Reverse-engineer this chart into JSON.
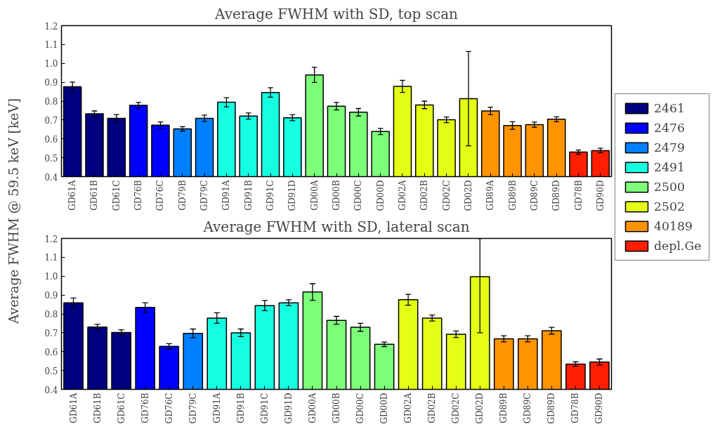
{
  "chart_data": [
    {
      "type": "bar",
      "title": "Average FWHM with SD, top scan",
      "ylabel": "Average FWHM @ 59.5 keV [keV]",
      "legend": "right",
      "grid": false,
      "categories": [
        "GD61A",
        "GD61B",
        "GD61C",
        "GD76B",
        "GD76C",
        "GD79B",
        "GD79C",
        "GD91A",
        "GD91B",
        "GD91C",
        "GD91D",
        "GD00A",
        "GD00B",
        "GD00C",
        "GD00D",
        "GD02A",
        "GD02B",
        "GD02C",
        "GD02D",
        "GD89A",
        "GD89B",
        "GD89C",
        "GD89D",
        "GD78B",
        "GD90D"
      ],
      "ylim": [
        0.4,
        1.2
      ],
      "yticks": [
        0.4,
        0.5,
        0.6,
        0.7,
        0.8,
        0.9,
        {
          "value": 1,
          "label": "1.0"
        },
        1.1,
        1.2
      ],
      "series": [
        {
          "name": "2461",
          "color": "#000080",
          "values": [
            0.876,
            0.733,
            0.709,
            null,
            null,
            null,
            null,
            null,
            null,
            null,
            null,
            null,
            null,
            null,
            null,
            null,
            null,
            null,
            null,
            null,
            null,
            null,
            null,
            null,
            null
          ],
          "errors": [
            0.025,
            0.015,
            0.02,
            null,
            null,
            null,
            null,
            null,
            null,
            null,
            null,
            null,
            null,
            null,
            null,
            null,
            null,
            null,
            null,
            null,
            null,
            null,
            null,
            null,
            null
          ]
        },
        {
          "name": "2476",
          "color": "#0000ff",
          "values": [
            null,
            null,
            null,
            0.778,
            0.673,
            null,
            null,
            null,
            null,
            null,
            null,
            null,
            null,
            null,
            null,
            null,
            null,
            null,
            null,
            null,
            null,
            null,
            null,
            null,
            null
          ],
          "errors": [
            null,
            null,
            null,
            0.015,
            0.017,
            null,
            null,
            null,
            null,
            null,
            null,
            null,
            null,
            null,
            null,
            null,
            null,
            null,
            null,
            null,
            null,
            null,
            null,
            null,
            null
          ]
        },
        {
          "name": "2479",
          "color": "#0080ff",
          "values": [
            null,
            null,
            null,
            null,
            null,
            0.653,
            0.709,
            null,
            null,
            null,
            null,
            null,
            null,
            null,
            null,
            null,
            null,
            null,
            null,
            null,
            null,
            null,
            null,
            null,
            null
          ],
          "errors": [
            null,
            null,
            null,
            null,
            null,
            0.012,
            0.017,
            null,
            null,
            null,
            null,
            null,
            null,
            null,
            null,
            null,
            null,
            null,
            null,
            null,
            null,
            null,
            null,
            null,
            null
          ]
        },
        {
          "name": "2491",
          "color": "#15ffe1",
          "values": [
            null,
            null,
            null,
            null,
            null,
            null,
            null,
            0.794,
            0.721,
            0.846,
            0.712,
            null,
            null,
            null,
            null,
            null,
            null,
            null,
            null,
            null,
            null,
            null,
            null,
            null,
            null
          ],
          "errors": [
            null,
            null,
            null,
            null,
            null,
            null,
            null,
            0.024,
            0.016,
            0.025,
            0.016,
            null,
            null,
            null,
            null,
            null,
            null,
            null,
            null,
            null,
            null,
            null,
            null,
            null,
            null
          ]
        },
        {
          "name": "2500",
          "color": "#7dff7a",
          "values": [
            null,
            null,
            null,
            null,
            null,
            null,
            null,
            null,
            null,
            null,
            null,
            0.939,
            0.773,
            0.741,
            0.639,
            null,
            null,
            null,
            null,
            null,
            null,
            null,
            null,
            null,
            null
          ],
          "errors": [
            null,
            null,
            null,
            null,
            null,
            null,
            null,
            null,
            null,
            null,
            null,
            0.04,
            0.02,
            0.02,
            0.016,
            null,
            null,
            null,
            null,
            null,
            null,
            null,
            null,
            null,
            null
          ]
        },
        {
          "name": "2502",
          "color": "#e4ff13",
          "values": [
            null,
            null,
            null,
            null,
            null,
            null,
            null,
            null,
            null,
            null,
            null,
            null,
            null,
            null,
            null,
            0.878,
            0.78,
            0.701,
            0.813,
            null,
            null,
            null,
            null,
            null,
            null
          ],
          "errors": [
            null,
            null,
            null,
            null,
            null,
            null,
            null,
            null,
            null,
            null,
            null,
            null,
            null,
            null,
            null,
            0.032,
            0.02,
            0.015,
            0.25,
            null,
            null,
            null,
            null,
            null,
            null
          ]
        },
        {
          "name": "40189",
          "color": "#ff9400",
          "values": [
            null,
            null,
            null,
            null,
            null,
            null,
            null,
            null,
            null,
            null,
            null,
            null,
            null,
            null,
            null,
            null,
            null,
            null,
            null,
            0.748,
            0.671,
            0.675,
            0.704,
            null,
            null
          ],
          "errors": [
            null,
            null,
            null,
            null,
            null,
            null,
            null,
            null,
            null,
            null,
            null,
            null,
            null,
            null,
            null,
            null,
            null,
            null,
            null,
            0.02,
            0.02,
            0.014,
            0.013,
            null,
            null
          ]
        },
        {
          "name": "depl.Ge",
          "color": "#ff1e00",
          "values": [
            null,
            null,
            null,
            null,
            null,
            null,
            null,
            null,
            null,
            null,
            null,
            null,
            null,
            null,
            null,
            null,
            null,
            null,
            null,
            null,
            null,
            null,
            null,
            0.53,
            0.538
          ],
          "errors": [
            null,
            null,
            null,
            null,
            null,
            null,
            null,
            null,
            null,
            null,
            null,
            null,
            null,
            null,
            null,
            null,
            null,
            null,
            null,
            null,
            null,
            null,
            null,
            0.011,
            0.012
          ]
        }
      ]
    },
    {
      "type": "bar",
      "title": "Average FWHM with SD, lateral scan",
      "grid": false,
      "categories": [
        "GD61A",
        "GD61B",
        "GD61C",
        "GD76B",
        "GD76C",
        "GD79C",
        "GD91A",
        "GD91B",
        "GD91C",
        "GD91D",
        "GD00A",
        "GD00B",
        "GD00C",
        "GD00D",
        "GD02A",
        "GD02B",
        "GD02C",
        "GD02D",
        "GD89B",
        "GD89C",
        "GD89D",
        "GD78B",
        "GD90D"
      ],
      "ylim": [
        0.4,
        1.2
      ],
      "yticks": [
        0.4,
        0.5,
        0.6,
        0.7,
        0.8,
        0.9,
        {
          "value": 1,
          "label": "1.0"
        },
        1.1,
        1.2
      ],
      "series": [
        {
          "color": "#000080",
          "values": [
            0.859,
            0.73,
            0.701,
            null,
            null,
            null,
            null,
            null,
            null,
            null,
            null,
            null,
            null,
            null,
            null,
            null,
            null,
            null,
            null,
            null,
            null,
            null,
            null
          ],
          "errors": [
            0.025,
            0.015,
            0.015,
            null,
            null,
            null,
            null,
            null,
            null,
            null,
            null,
            null,
            null,
            null,
            null,
            null,
            null,
            null,
            null,
            null,
            null,
            null,
            null
          ]
        },
        {
          "color": "#0000ff",
          "values": [
            null,
            null,
            null,
            0.834,
            0.628,
            null,
            null,
            null,
            null,
            null,
            null,
            null,
            null,
            null,
            null,
            null,
            null,
            null,
            null,
            null,
            null,
            null,
            null
          ],
          "errors": [
            null,
            null,
            null,
            0.025,
            0.014,
            null,
            null,
            null,
            null,
            null,
            null,
            null,
            null,
            null,
            null,
            null,
            null,
            null,
            null,
            null,
            null,
            null,
            null
          ]
        },
        {
          "color": "#0080ff",
          "values": [
            null,
            null,
            null,
            null,
            null,
            0.697,
            null,
            null,
            null,
            null,
            null,
            null,
            null,
            null,
            null,
            null,
            null,
            null,
            null,
            null,
            null,
            null,
            null
          ],
          "errors": [
            null,
            null,
            null,
            null,
            null,
            0.023,
            null,
            null,
            null,
            null,
            null,
            null,
            null,
            null,
            null,
            null,
            null,
            null,
            null,
            null,
            null,
            null,
            null
          ]
        },
        {
          "color": "#15ffe1",
          "values": [
            null,
            null,
            null,
            null,
            null,
            null,
            0.778,
            0.7,
            0.844,
            0.859,
            null,
            null,
            null,
            null,
            null,
            null,
            null,
            null,
            null,
            null,
            null,
            null,
            null
          ],
          "errors": [
            null,
            null,
            null,
            null,
            null,
            null,
            0.028,
            0.02,
            0.027,
            0.016,
            null,
            null,
            null,
            null,
            null,
            null,
            null,
            null,
            null,
            null,
            null,
            null,
            null
          ]
        },
        {
          "color": "#7dff7a",
          "values": [
            null,
            null,
            null,
            null,
            null,
            null,
            null,
            null,
            null,
            null,
            0.916,
            0.766,
            0.729,
            0.639,
            null,
            null,
            null,
            null,
            null,
            null,
            null,
            null,
            null
          ],
          "errors": [
            null,
            null,
            null,
            null,
            null,
            null,
            null,
            null,
            null,
            null,
            0.044,
            0.021,
            0.021,
            0.012,
            null,
            null,
            null,
            null,
            null,
            null,
            null,
            null,
            null
          ]
        },
        {
          "color": "#e4ff13",
          "values": [
            null,
            null,
            null,
            null,
            null,
            null,
            null,
            null,
            null,
            null,
            null,
            null,
            null,
            null,
            0.875,
            0.778,
            0.692,
            0.997,
            null,
            null,
            null,
            null,
            null
          ],
          "errors": [
            null,
            null,
            null,
            null,
            null,
            null,
            null,
            null,
            null,
            null,
            null,
            null,
            null,
            null,
            0.029,
            0.016,
            0.017,
            [
              0.7,
              1.2
            ],
            null,
            null,
            null,
            null,
            null
          ]
        },
        {
          "color": "#ff9400",
          "values": [
            null,
            null,
            null,
            null,
            null,
            null,
            null,
            null,
            null,
            null,
            null,
            null,
            null,
            null,
            null,
            null,
            null,
            null,
            0.668,
            0.668,
            0.711,
            null,
            null
          ],
          "errors": [
            null,
            null,
            null,
            null,
            null,
            null,
            null,
            null,
            null,
            null,
            null,
            null,
            null,
            null,
            null,
            null,
            null,
            null,
            0.016,
            0.016,
            0.018,
            null,
            null
          ]
        },
        {
          "color": "#ff1e00",
          "values": [
            null,
            null,
            null,
            null,
            null,
            null,
            null,
            null,
            null,
            null,
            null,
            null,
            null,
            null,
            null,
            null,
            null,
            null,
            null,
            null,
            null,
            0.534,
            0.545
          ],
          "errors": [
            null,
            null,
            null,
            null,
            null,
            null,
            null,
            null,
            null,
            null,
            null,
            null,
            null,
            null,
            null,
            null,
            null,
            null,
            null,
            null,
            null,
            0.012,
            0.016
          ]
        }
      ]
    }
  ]
}
